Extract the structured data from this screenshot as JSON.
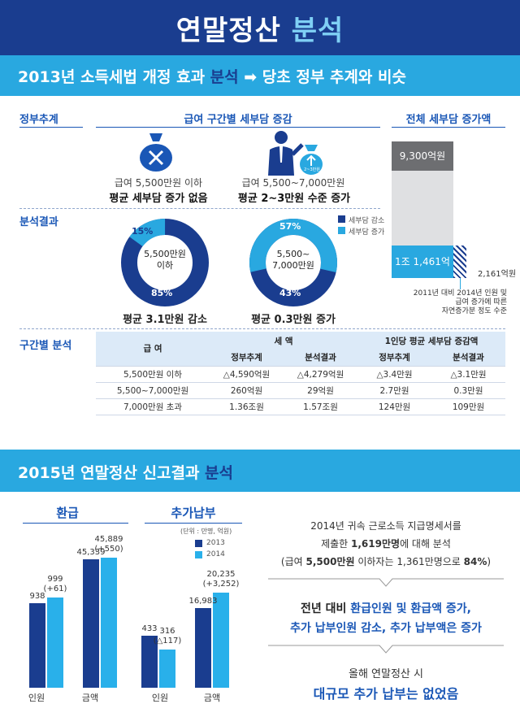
{
  "header": {
    "title_main": "연말정산",
    "title_hl": "분석"
  },
  "banner1": {
    "pre": "2013년 소득세법 개정 효과 ",
    "hl": "분석",
    "arrow": "➡",
    "post": " 당초 정부 추계와 비슷"
  },
  "section_labels": {
    "gov": "정부추계",
    "analysis": "분석결과",
    "bracket": "구간별 분석"
  },
  "col_heads": {
    "bracket_change": "급여 구간별 세부담 증감",
    "total_change": "전체 세부담 증가액"
  },
  "gov_items": [
    {
      "icon": "money-bag-x-icon",
      "line1": "급여 5,500만원 이하",
      "line2": "평균 세부담 증가 없음"
    },
    {
      "icon": "businessman-money-bag-icon",
      "bag_text": "2~3만원",
      "line1": "급여 5,500~7,000만원",
      "line2": "평균 2~3만원 수준 증가"
    }
  ],
  "donuts": [
    {
      "center": "5,500만원\n이하",
      "decrease_pct": 85,
      "increase_pct": 15,
      "label_dec": "85%",
      "label_inc": "15%",
      "caption": "평균 3.1만원 감소"
    },
    {
      "center": "5,500~\n7,000만원",
      "decrease_pct": 43,
      "increase_pct": 57,
      "label_dec": "43%",
      "label_inc": "57%",
      "caption": "평균 0.3만원 증가"
    }
  ],
  "legend": {
    "decrease": "세부담 감소",
    "increase": "세부담 증가"
  },
  "total_bar": {
    "gov": "9,300억원",
    "analysis": "1조 1,461억원",
    "diff": "2,161억원",
    "note": [
      "2011년 대비 2014년 인원 및",
      "급여 증가에 따른",
      "자연증가분 정도 수준"
    ]
  },
  "table": {
    "h_pay": "급 여",
    "h_tax": "세 액",
    "h_avg": "1인당 평균 세부담 증감액",
    "sub": [
      "정부추계",
      "분석결과",
      "정부추계",
      "분석결과"
    ],
    "rows": [
      [
        "5,500만원 이하",
        "△4,590억원",
        "△4,279억원",
        "△3.4만원",
        "△3.1만원"
      ],
      [
        "5,500~7,000만원",
        "260억원",
        "29억원",
        "2.7만원",
        "0.3만원"
      ],
      [
        "7,000만원 초과",
        "1.36조원",
        "1.57조원",
        "124만원",
        "109만원"
      ]
    ]
  },
  "banner2": {
    "pre": "2015년 연말정산 신고결과 ",
    "hl": "분석"
  },
  "refund_chart": {
    "title": "환급",
    "cats": [
      "인원",
      "금액"
    ]
  },
  "extra_chart": {
    "title": "추가납부",
    "unit": "(단위 : 만명, 억원)",
    "cats": [
      "인원",
      "금액"
    ]
  },
  "chart_legend": [
    "2013",
    "2014"
  ],
  "chart_data": [
    {
      "type": "bar",
      "title": "환급",
      "categories": [
        "인원",
        "금액"
      ],
      "series": [
        {
          "name": "2013",
          "values": [
            938,
            45339
          ]
        },
        {
          "name": "2014",
          "values": [
            999,
            45889
          ]
        }
      ],
      "labels_2014": [
        "999\n(+61)",
        "45,889\n(+550)"
      ],
      "labels_2013": [
        "938",
        "45,339"
      ]
    },
    {
      "type": "bar",
      "title": "추가납부",
      "categories": [
        "인원",
        "금액"
      ],
      "series": [
        {
          "name": "2013",
          "values": [
            433,
            16983
          ]
        },
        {
          "name": "2014",
          "values": [
            316,
            20235
          ]
        }
      ],
      "labels_2014": [
        "316\n(△117)",
        "20,235\n(+3,252)"
      ],
      "labels_2013": [
        "433",
        "16,983"
      ]
    }
  ],
  "right": {
    "p1": "2014년 귀속 근로소득 지급명세서를",
    "p2_pre": "제출한 ",
    "p2_b": "1,619만명",
    "p2_post": "에 대해 분석",
    "p3_pre": "(급여 ",
    "p3_b": "5,500만원",
    "p3_mid": " 이하자는 1,361만명으로 ",
    "p3_b2": "84%",
    "p3_post": ")",
    "q1_pre": "전년 대비 ",
    "q1_hl": "환급인원 및 환급액 증가,",
    "q2": "추가 납부인원 감소, 추가 납부액은 증가",
    "r1": "올해 연말정산 시",
    "r2": "대규모 추가 납부는 없었음"
  },
  "colors": {
    "navy": "#1a3d8f",
    "sky": "#29a8e0",
    "dark_bar": "#1a3d8f",
    "light_bar": "#29b0ea",
    "gray": "#6d6e71"
  }
}
